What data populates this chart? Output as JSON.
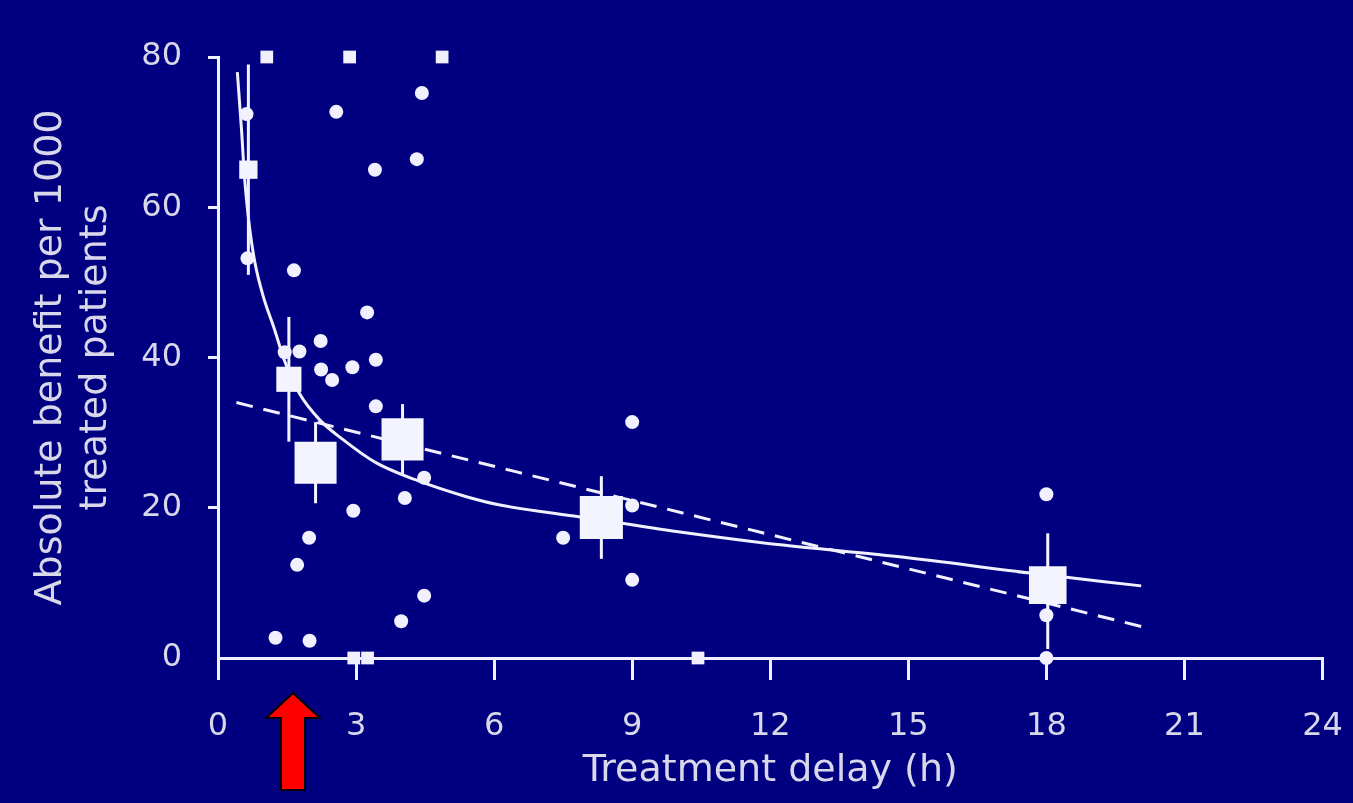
{
  "chart_data": {
    "type": "scatter",
    "xlabel": "Treatment delay (h)",
    "ylabel": "Absolute benefit per 1000 treated patients",
    "xlim": [
      0,
      24
    ],
    "xticks": [
      0,
      3,
      6,
      9,
      12,
      15,
      18,
      21,
      24
    ],
    "ylim": [
      0,
      80
    ],
    "yticks": [
      0,
      20,
      40,
      60,
      80
    ],
    "series": [
      {
        "marker": "circle",
        "color": "#f0f0ff",
        "x": [
          1.65,
          1.77,
          1.99,
          2.23,
          2.57,
          2.92,
          3.24,
          3.41,
          3.43,
          3.98,
          4.32,
          4.43
        ],
        "values": [
          51.6,
          40.8,
          2.3,
          42.2,
          72.7,
          38.7,
          46.0,
          65.0,
          33.5,
          4.9,
          66.4,
          75.2
        ]
      },
      {
        "marker": "circle",
        "color": "#f0f0ff",
        "x": [
          0.62,
          0.64,
          1.25,
          1.45,
          1.72,
          1.98,
          2.24,
          2.48,
          2.94,
          3.43,
          4.06,
          4.48,
          4.48,
          7.5,
          9.0,
          9.0,
          9.0,
          18.0,
          18.0,
          18.0
        ],
        "values": [
          72.4,
          53.2,
          2.7,
          40.7,
          12.4,
          16.0,
          38.4,
          37.0,
          19.6,
          39.7,
          21.3,
          24.0,
          8.3,
          16.0,
          31.4,
          20.3,
          10.4,
          21.8,
          5.7,
          0
        ]
      },
      {
        "marker": "square",
        "color": "#f0f0ff",
        "x": [
          1.06,
          2.86,
          4.87,
          2.95,
          3.25,
          10.43
        ],
        "values": [
          80,
          80,
          80,
          0,
          0,
          0
        ]
      },
      {
        "type": "bubble",
        "marker": "square",
        "color": "#f4f4ff",
        "x": [
          0.66,
          1.54,
          2.12,
          4.01,
          8.33,
          18.03
        ],
        "values": [
          65.0,
          37.1,
          26.0,
          29.1,
          18.7,
          9.7
        ],
        "sizes": [
          0.18,
          0.34,
          0.95,
          0.95,
          1,
          0.76
        ],
        "errors": [
          14,
          8.3,
          5.4,
          4.7,
          5.5,
          [
            1.2,
            16.6
          ]
        ]
      },
      {
        "type": "line",
        "marker": "none",
        "line_style": "solid",
        "color": "#f0f0ff",
        "x": [
          0.42,
          0.51,
          0.58,
          0.69,
          0.8,
          0.98,
          1.23,
          1.45,
          1.77,
          2.21,
          2.71,
          3.43,
          4.3,
          5.38,
          6.1,
          7.84,
          10.0,
          12.16,
          14.76,
          17.65,
          20.06
        ],
        "values": [
          78.0,
          70.4,
          63.7,
          57.1,
          52.7,
          48.2,
          43.7,
          39.5,
          35.2,
          31.7,
          29.1,
          26.0,
          23.7,
          21.5,
          20.4,
          18.8,
          16.8,
          15.1,
          13.5,
          11.3,
          9.6
        ]
      },
      {
        "type": "line",
        "marker": "none",
        "line_style": "dashed",
        "color": "#f0f0ff",
        "x": [
          0.4,
          20.06
        ],
        "values": [
          34.0,
          4.2
        ]
      }
    ]
  }
}
